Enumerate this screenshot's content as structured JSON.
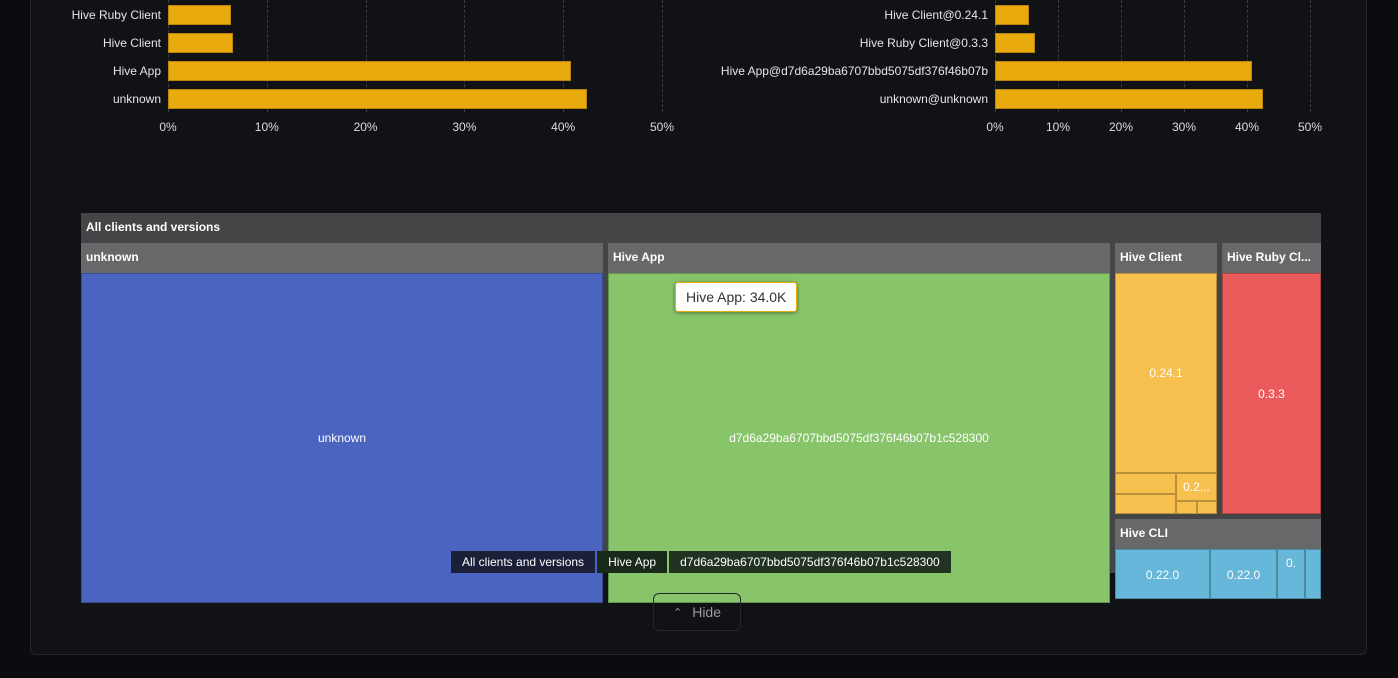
{
  "chart_data": [
    {
      "type": "bar",
      "orientation": "horizontal",
      "categories": [
        "Hive Ruby Client",
        "Hive Client",
        "Hive App",
        "unknown"
      ],
      "values": [
        6.4,
        6.6,
        40.8,
        42.4
      ],
      "xlim": [
        0,
        50
      ],
      "xticks": [
        "0%",
        "10%",
        "20%",
        "30%",
        "40%",
        "50%"
      ],
      "grid": true,
      "color": "#e9aa0e"
    },
    {
      "type": "bar",
      "orientation": "horizontal",
      "categories": [
        "Hive Client@0.24.1",
        "Hive Ruby Client@0.3.3",
        "Hive App@d7d6a29ba6707bbd5075df376f46b07b",
        "unknown@unknown"
      ],
      "values": [
        5.4,
        6.3,
        40.8,
        42.5
      ],
      "xlim": [
        0,
        50
      ],
      "xticks": [
        "0%",
        "10%",
        "20%",
        "30%",
        "40%",
        "50%"
      ],
      "grid": true,
      "color": "#e9aa0e"
    },
    {
      "type": "treemap",
      "root": "All clients and versions",
      "groups": [
        {
          "name": "unknown",
          "color": "#4a64c0",
          "children": [
            "unknown"
          ]
        },
        {
          "name": "Hive App",
          "color": "#88c56a",
          "children": [
            "d7d6a29ba6707bbd5075df376f46b07b1c528300"
          ]
        },
        {
          "name": "Hive Client",
          "color": "#f8c04e",
          "children": [
            "0.24.1",
            "0.2..."
          ]
        },
        {
          "name": "Hive Ruby Cl...",
          "color": "#eb5b5b",
          "children": [
            "0.3.3"
          ]
        },
        {
          "name": "Hive CLI",
          "color": "#66b7d9",
          "children": [
            "0.",
            "0.22.0",
            "0.22.0"
          ]
        }
      ],
      "tooltip": "Hive App: 34.0K",
      "breadcrumb": [
        "All clients and versions",
        "Hive App",
        "d7d6a29ba6707bbd5075df376f46b07b1c528300"
      ]
    }
  ],
  "hide_label": "Hide"
}
